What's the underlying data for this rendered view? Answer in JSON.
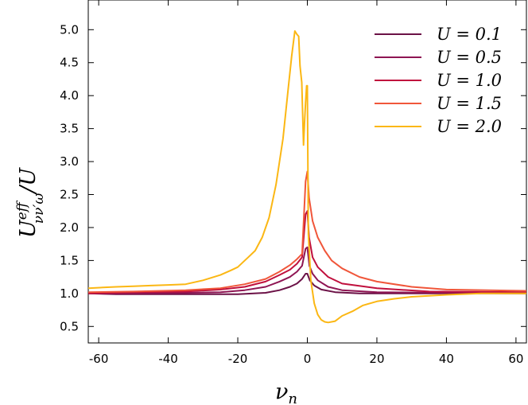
{
  "chart_data": {
    "type": "line",
    "xlabel": {
      "main": "ν",
      "sub": "n"
    },
    "ylabel": {
      "main": "U",
      "sup": "eff",
      "sub": "νν′ω",
      "tail": "/U"
    },
    "xlim": [
      -63,
      63
    ],
    "ylim": [
      0.25,
      5.45
    ],
    "x_ticks": [
      -60,
      -40,
      -20,
      0,
      20,
      40,
      60
    ],
    "y_ticks": [
      0.5,
      1.0,
      1.5,
      2.0,
      2.5,
      3.0,
      3.5,
      4.0,
      4.5,
      5.0
    ],
    "grid": false,
    "legend_position": "top-right",
    "series": [
      {
        "name": "U = 0.1",
        "color": "#6b1146",
        "points": [
          [
            -63,
            1.0
          ],
          [
            -55,
            0.99
          ],
          [
            -40,
            0.99
          ],
          [
            -30,
            0.99
          ],
          [
            -20,
            0.99
          ],
          [
            -12,
            1.01
          ],
          [
            -8,
            1.05
          ],
          [
            -5,
            1.1
          ],
          [
            -3,
            1.15
          ],
          [
            -1.5,
            1.22
          ],
          [
            -0.5,
            1.3
          ],
          [
            0,
            1.3
          ],
          [
            0.7,
            1.2
          ],
          [
            2,
            1.12
          ],
          [
            4,
            1.06
          ],
          [
            8,
            1.02
          ],
          [
            15,
            1.0
          ],
          [
            30,
            1.0
          ],
          [
            63,
            1.0
          ]
        ]
      },
      {
        "name": "U = 0.5",
        "color": "#8e1553",
        "points": [
          [
            -63,
            1.0
          ],
          [
            -50,
            1.0
          ],
          [
            -35,
            1.01
          ],
          [
            -25,
            1.02
          ],
          [
            -18,
            1.05
          ],
          [
            -12,
            1.1
          ],
          [
            -8,
            1.18
          ],
          [
            -5,
            1.25
          ],
          [
            -3,
            1.33
          ],
          [
            -1.5,
            1.42
          ],
          [
            -0.5,
            1.68
          ],
          [
            0,
            1.7
          ],
          [
            0.6,
            1.42
          ],
          [
            1.5,
            1.3
          ],
          [
            3,
            1.2
          ],
          [
            6,
            1.1
          ],
          [
            10,
            1.05
          ],
          [
            20,
            1.02
          ],
          [
            63,
            1.0
          ]
        ]
      },
      {
        "name": "U = 1.0",
        "color": "#c0103d",
        "points": [
          [
            -63,
            1.0
          ],
          [
            -50,
            1.02
          ],
          [
            -35,
            1.03
          ],
          [
            -25,
            1.06
          ],
          [
            -18,
            1.1
          ],
          [
            -12,
            1.18
          ],
          [
            -8,
            1.28
          ],
          [
            -5,
            1.36
          ],
          [
            -3,
            1.45
          ],
          [
            -1.5,
            1.55
          ],
          [
            -0.5,
            2.2
          ],
          [
            0,
            2.25
          ],
          [
            0.5,
            1.85
          ],
          [
            1.5,
            1.55
          ],
          [
            3,
            1.4
          ],
          [
            6,
            1.25
          ],
          [
            10,
            1.15
          ],
          [
            20,
            1.08
          ],
          [
            35,
            1.03
          ],
          [
            63,
            1.02
          ]
        ]
      },
      {
        "name": "U = 1.5",
        "color": "#f0563a",
        "points": [
          [
            -63,
            1.02
          ],
          [
            -50,
            1.03
          ],
          [
            -35,
            1.05
          ],
          [
            -25,
            1.08
          ],
          [
            -18,
            1.14
          ],
          [
            -12,
            1.22
          ],
          [
            -8,
            1.33
          ],
          [
            -5,
            1.43
          ],
          [
            -3,
            1.52
          ],
          [
            -1.5,
            1.6
          ],
          [
            -0.5,
            2.7
          ],
          [
            0,
            2.85
          ],
          [
            0.5,
            2.45
          ],
          [
            1.5,
            2.1
          ],
          [
            3,
            1.85
          ],
          [
            5,
            1.65
          ],
          [
            7,
            1.5
          ],
          [
            10,
            1.38
          ],
          [
            15,
            1.25
          ],
          [
            20,
            1.18
          ],
          [
            30,
            1.1
          ],
          [
            40,
            1.06
          ],
          [
            63,
            1.04
          ]
        ]
      },
      {
        "name": "U = 2.0",
        "color": "#fbb714",
        "points": [
          [
            -63,
            1.08
          ],
          [
            -55,
            1.1
          ],
          [
            -50,
            1.11
          ],
          [
            -45,
            1.12
          ],
          [
            -40,
            1.13
          ],
          [
            -35,
            1.14
          ],
          [
            -30,
            1.2
          ],
          [
            -25,
            1.28
          ],
          [
            -22,
            1.35
          ],
          [
            -20,
            1.4
          ],
          [
            -17,
            1.55
          ],
          [
            -15,
            1.65
          ],
          [
            -13,
            1.85
          ],
          [
            -11,
            2.15
          ],
          [
            -9,
            2.65
          ],
          [
            -7,
            3.35
          ],
          [
            -5.5,
            4.1
          ],
          [
            -4.5,
            4.6
          ],
          [
            -3.6,
            4.98
          ],
          [
            -3.0,
            4.93
          ],
          [
            -2.5,
            4.9
          ],
          [
            -2.1,
            4.45
          ],
          [
            -1.6,
            4.2
          ],
          [
            -1.1,
            3.25
          ],
          [
            -0.8,
            3.6
          ],
          [
            -0.5,
            3.9
          ],
          [
            -0.2,
            4.15
          ],
          [
            0,
            4.15
          ],
          [
            0.3,
            1.9
          ],
          [
            1,
            1.2
          ],
          [
            2,
            0.85
          ],
          [
            3,
            0.68
          ],
          [
            4,
            0.6
          ],
          [
            5,
            0.57
          ],
          [
            6,
            0.56
          ],
          [
            8,
            0.58
          ],
          [
            10,
            0.66
          ],
          [
            13,
            0.73
          ],
          [
            16,
            0.82
          ],
          [
            20,
            0.88
          ],
          [
            25,
            0.92
          ],
          [
            30,
            0.95
          ],
          [
            40,
            0.98
          ],
          [
            50,
            1.0
          ],
          [
            63,
            1.0
          ]
        ]
      }
    ]
  }
}
